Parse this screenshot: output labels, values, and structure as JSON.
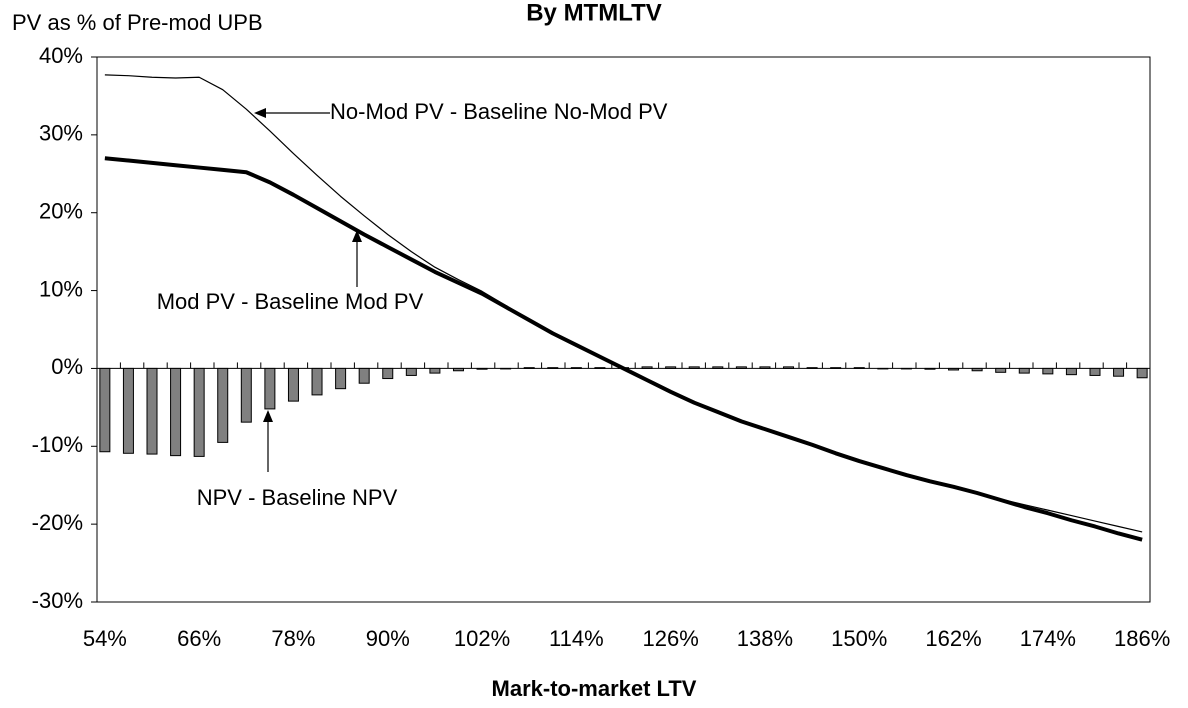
{
  "chart_data": {
    "type": "bar",
    "title": "By MTMLTV",
    "y_label": "PV as % of Pre-mod UPB",
    "x_label": "Mark-to-market LTV",
    "x": [
      54,
      57,
      60,
      63,
      66,
      69,
      72,
      75,
      78,
      81,
      84,
      87,
      90,
      93,
      96,
      99,
      102,
      105,
      108,
      111,
      114,
      117,
      120,
      123,
      126,
      129,
      132,
      135,
      138,
      141,
      144,
      147,
      150,
      153,
      156,
      159,
      162,
      165,
      168,
      171,
      174,
      177,
      180,
      183,
      186
    ],
    "series": [
      {
        "name": "NPV - Baseline NPV",
        "type": "bar",
        "color": "#808080",
        "values": [
          -10.7,
          -10.9,
          -11.0,
          -11.2,
          -11.3,
          -9.5,
          -6.9,
          -5.2,
          -4.2,
          -3.4,
          -2.6,
          -1.9,
          -1.3,
          -0.9,
          -0.6,
          -0.3,
          -0.1,
          0,
          0.1,
          0.1,
          0.1,
          0.1,
          0.1,
          0.2,
          0.2,
          0.2,
          0.2,
          0.2,
          0.2,
          0.2,
          0.1,
          0.1,
          0.1,
          0,
          0,
          -0.1,
          -0.2,
          -0.3,
          -0.5,
          -0.6,
          -0.7,
          -0.8,
          -0.9,
          -1.0,
          -1.2
        ]
      },
      {
        "name": "No-Mod PV - Baseline No-Mod PV",
        "type": "line",
        "color": "#000000",
        "width": 1.2,
        "values": [
          37.7,
          37.6,
          37.4,
          37.3,
          37.4,
          35.8,
          33.3,
          30.5,
          27.6,
          24.8,
          22.1,
          19.6,
          17.2,
          15.0,
          13.0,
          11.4,
          9.9,
          8.1,
          6.3,
          4.6,
          3.0,
          1.5,
          0.0,
          -1.5,
          -3.0,
          -4.4,
          -5.6,
          -6.8,
          -7.8,
          -8.8,
          -9.8,
          -10.9,
          -11.9,
          -12.8,
          -13.7,
          -14.5,
          -15.2,
          -16.0,
          -16.8,
          -17.5,
          -18.2,
          -18.9,
          -19.6,
          -20.3,
          -21.0
        ]
      },
      {
        "name": "Mod PV - Baseline Mod PV",
        "type": "line",
        "color": "#000000",
        "width": 4,
        "values": [
          27.0,
          26.7,
          26.4,
          26.1,
          25.8,
          25.5,
          25.2,
          23.9,
          22.3,
          20.6,
          18.9,
          17.2,
          15.6,
          14.0,
          12.4,
          11.0,
          9.6,
          7.9,
          6.2,
          4.5,
          3.0,
          1.5,
          0.0,
          -1.5,
          -3.0,
          -4.4,
          -5.6,
          -6.8,
          -7.8,
          -8.8,
          -9.8,
          -10.9,
          -11.9,
          -12.8,
          -13.7,
          -14.5,
          -15.2,
          -16.0,
          -16.9,
          -17.8,
          -18.6,
          -19.5,
          -20.3,
          -21.2,
          -22.0
        ]
      }
    ],
    "xlim": [
      53,
      187
    ],
    "ylim": [
      -30,
      40
    ],
    "xticks": [
      {
        "value": 54,
        "label": "54%"
      },
      {
        "value": 66,
        "label": "66%"
      },
      {
        "value": 78,
        "label": "78%"
      },
      {
        "value": 90,
        "label": "90%"
      },
      {
        "value": 102,
        "label": "102%"
      },
      {
        "value": 114,
        "label": "114%"
      },
      {
        "value": 126,
        "label": "126%"
      },
      {
        "value": 138,
        "label": "138%"
      },
      {
        "value": 150,
        "label": "150%"
      },
      {
        "value": 162,
        "label": "162%"
      },
      {
        "value": 174,
        "label": "174%"
      },
      {
        "value": 186,
        "label": "186%"
      }
    ],
    "yticks": [
      {
        "value": -30,
        "label": "-30%"
      },
      {
        "value": -20,
        "label": "-20%"
      },
      {
        "value": -10,
        "label": "-10%"
      },
      {
        "value": 0,
        "label": "0%"
      },
      {
        "value": 10,
        "label": "10%"
      },
      {
        "value": 20,
        "label": "20%"
      },
      {
        "value": 30,
        "label": "30%"
      },
      {
        "value": 40,
        "label": "40%"
      }
    ]
  }
}
